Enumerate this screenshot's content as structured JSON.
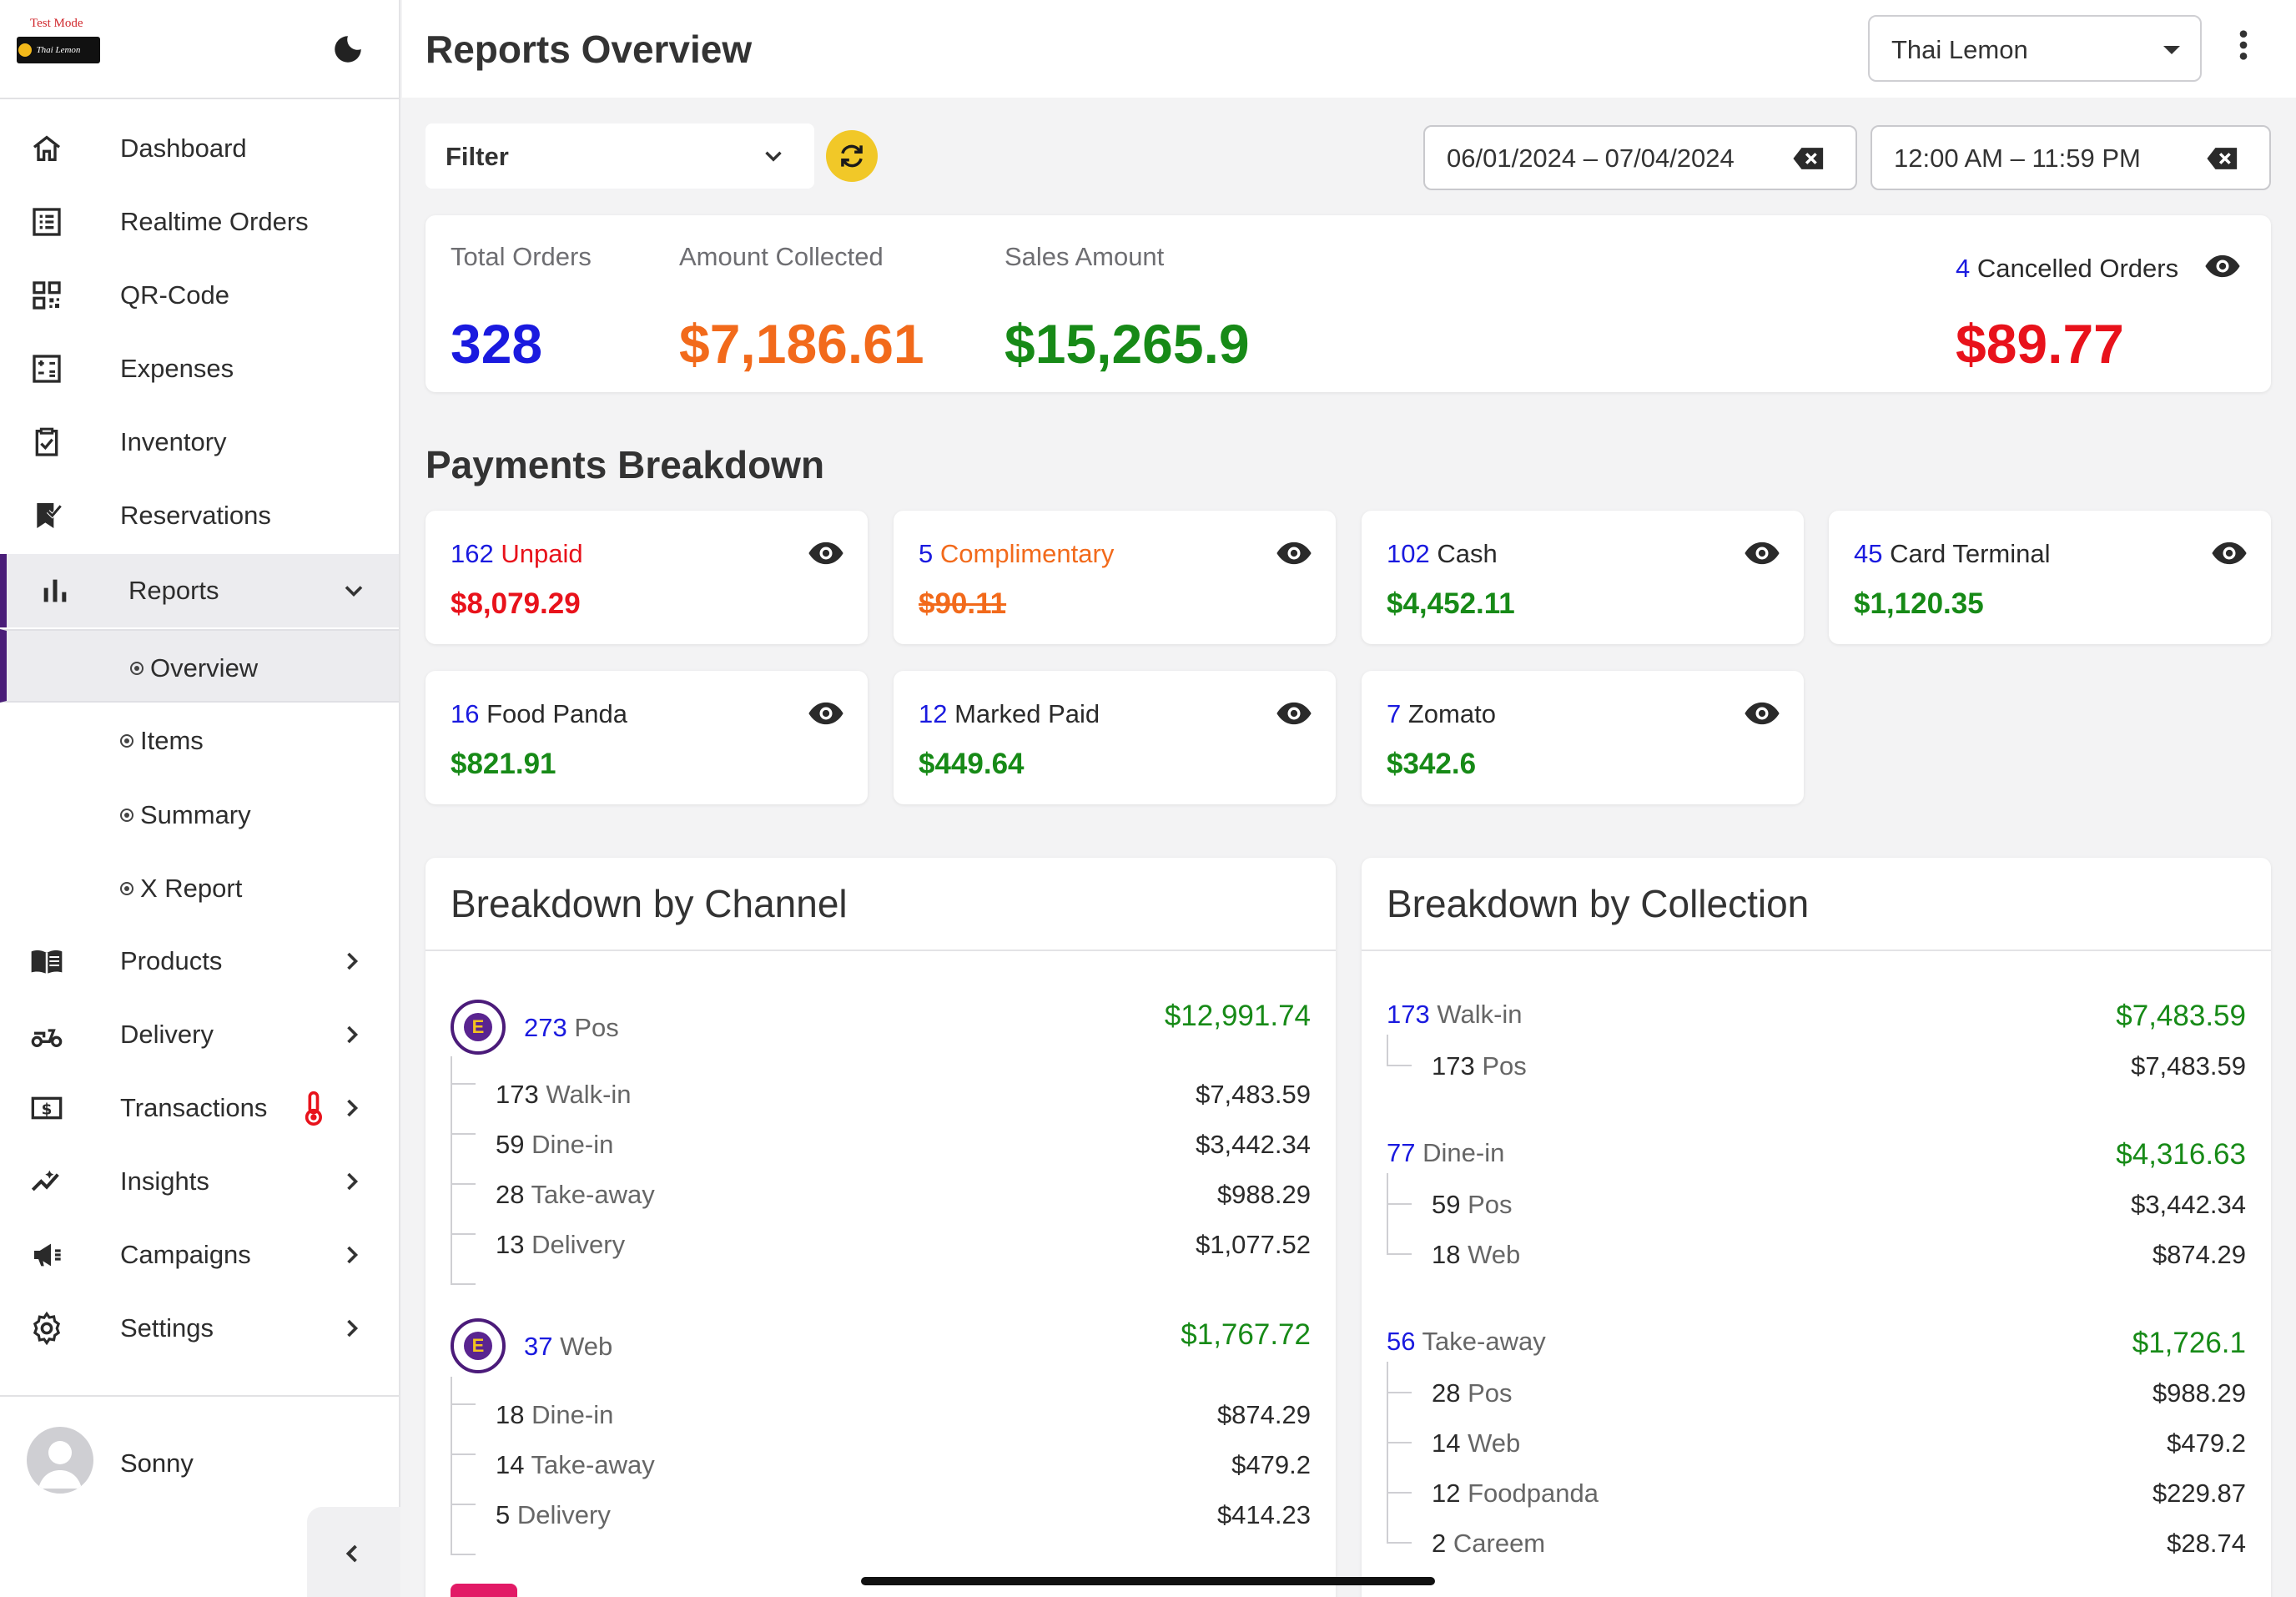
{
  "app": {
    "test_mode_label": "Test Mode",
    "logo_text": "Thai Lemon"
  },
  "nav": {
    "dashboard": "Dashboard",
    "realtime_orders": "Realtime Orders",
    "qr_code": "QR-Code",
    "expenses": "Expenses",
    "inventory": "Inventory",
    "reservations": "Reservations",
    "reports": "Reports",
    "reports_sub": [
      "Overview",
      "Items",
      "Summary",
      "X Report"
    ],
    "products": "Products",
    "delivery": "Delivery",
    "transactions": "Transactions",
    "insights": "Insights",
    "campaigns": "Campaigns",
    "settings": "Settings"
  },
  "user": {
    "name": "Sonny"
  },
  "header": {
    "title": "Reports Overview",
    "restaurant": "Thai Lemon"
  },
  "toolbar": {
    "filter_label": "Filter",
    "date_range": "06/01/2024 – 07/04/2024",
    "time_range": "12:00 AM – 11:59 PM"
  },
  "stats": {
    "total_orders_label": "Total Orders",
    "total_orders": "328",
    "amount_collected_label": "Amount Collected",
    "amount_collected": "$7,186.61",
    "sales_amount_label": "Sales Amount",
    "sales_amount": "$15,265.9",
    "cancelled_count": "4",
    "cancelled_label": "Cancelled Orders",
    "cancelled_amount": "$89.77"
  },
  "payments": {
    "title": "Payments Breakdown",
    "cards": [
      {
        "count": "162",
        "label": "Unpaid",
        "amount": "$8,079.29"
      },
      {
        "count": "5",
        "label": "Complimentary",
        "amount": "$90.11"
      },
      {
        "count": "102",
        "label": "Cash",
        "amount": "$4,452.11"
      },
      {
        "count": "45",
        "label": "Card Terminal",
        "amount": "$1,120.35"
      },
      {
        "count": "16",
        "label": "Food Panda",
        "amount": "$821.91"
      },
      {
        "count": "12",
        "label": "Marked Paid",
        "amount": "$449.64"
      },
      {
        "count": "7",
        "label": "Zomato",
        "amount": "$342.6"
      }
    ]
  },
  "channel": {
    "title": "Breakdown by Channel",
    "groups": [
      {
        "count": "273",
        "name": "Pos",
        "total": "$12,991.74",
        "logo_letter": "E",
        "items": [
          {
            "count": "173",
            "name": "Walk-in",
            "amount": "$7,483.59"
          },
          {
            "count": "59",
            "name": "Dine-in",
            "amount": "$3,442.34"
          },
          {
            "count": "28",
            "name": "Take-away",
            "amount": "$988.29"
          },
          {
            "count": "13",
            "name": "Delivery",
            "amount": "$1,077.52"
          }
        ]
      },
      {
        "count": "37",
        "name": "Web",
        "total": "$1,767.72",
        "logo_letter": "E",
        "items": [
          {
            "count": "18",
            "name": "Dine-in",
            "amount": "$874.29"
          },
          {
            "count": "14",
            "name": "Take-away",
            "amount": "$479.2"
          },
          {
            "count": "5",
            "name": "Delivery",
            "amount": "$414.23"
          }
        ]
      }
    ]
  },
  "collection": {
    "title": "Breakdown by Collection",
    "groups": [
      {
        "count": "173",
        "name": "Walk-in",
        "total": "$7,483.59",
        "items": [
          {
            "count": "173",
            "name": "Pos",
            "amount": "$7,483.59"
          }
        ]
      },
      {
        "count": "77",
        "name": "Dine-in",
        "total": "$4,316.63",
        "items": [
          {
            "count": "59",
            "name": "Pos",
            "amount": "$3,442.34"
          },
          {
            "count": "18",
            "name": "Web",
            "amount": "$874.29"
          }
        ]
      },
      {
        "count": "56",
        "name": "Take-away",
        "total": "$1,726.1",
        "items": [
          {
            "count": "28",
            "name": "Pos",
            "amount": "$988.29"
          },
          {
            "count": "14",
            "name": "Web",
            "amount": "$479.2"
          },
          {
            "count": "12",
            "name": "Foodpanda",
            "amount": "$229.87"
          },
          {
            "count": "2",
            "name": "Careem",
            "amount": "$28.74"
          }
        ]
      }
    ]
  },
  "colors": {
    "accent": "#4a1d78",
    "blue": "#1a1adf",
    "green": "#178a17",
    "orange": "#f26a1b",
    "red": "#e8121b",
    "refresh": "#f1c828"
  }
}
